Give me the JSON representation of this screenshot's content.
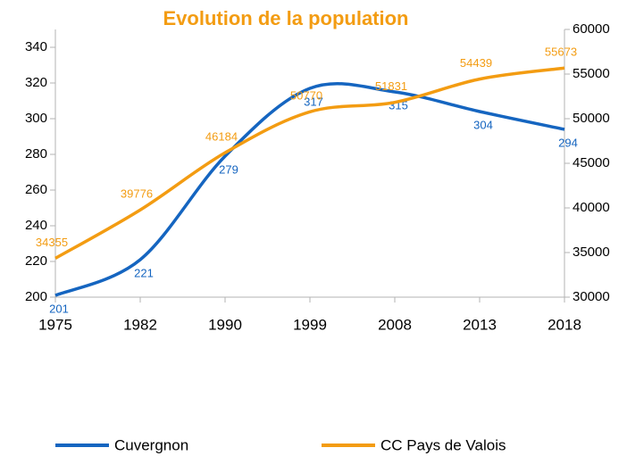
{
  "chart_data": {
    "type": "line",
    "title": "Evolution de la population",
    "categories": [
      "1975",
      "1982",
      "1990",
      "1999",
      "2008",
      "2013",
      "2018"
    ],
    "series": [
      {
        "name": "Cuvergnon",
        "color": "#1565c0",
        "values": [
          201,
          221,
          279,
          317,
          315,
          304,
          294
        ]
      },
      {
        "name": "CC Pays de Valois",
        "color": "#f39c12",
        "axis": "y2",
        "values": [
          34355,
          39776,
          46184,
          50770,
          51831,
          54439,
          55673
        ]
      }
    ],
    "ylim": [
      200,
      350
    ],
    "yticks": [
      200,
      220,
      240,
      260,
      280,
      300,
      320,
      340
    ],
    "y2lim": [
      30000,
      60000
    ],
    "y2ticks": [
      30000,
      35000,
      40000,
      45000,
      50000,
      55000,
      60000
    ],
    "grid": false,
    "legend": "bottom",
    "smooth": true
  }
}
